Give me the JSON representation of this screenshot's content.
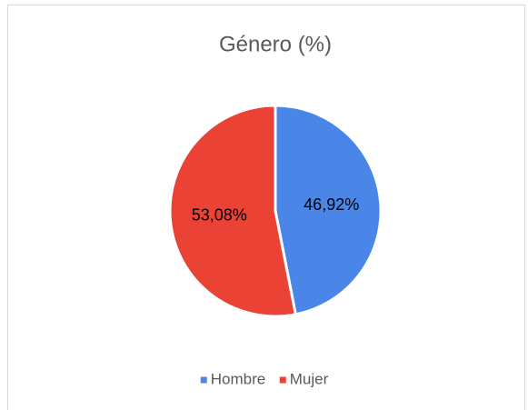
{
  "chart_data": {
    "type": "pie",
    "title": "Género (%)",
    "categories": [
      "Hombre",
      "Mujer"
    ],
    "values": [
      46.92,
      53.08
    ],
    "value_labels": [
      "46,92%",
      "53,08%"
    ],
    "colors": [
      "#4a86e8",
      "#ea4335"
    ],
    "legend": "bottom"
  }
}
